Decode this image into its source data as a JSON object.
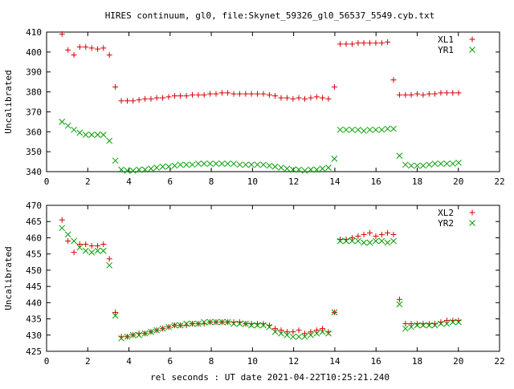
{
  "title": "HIRES continuum, gl0, file:Skynet_59326_gl0_56537_5549.cyb.txt",
  "xlabel": "rel seconds : UT date 2021-04-22T10:25:21.240",
  "chart_data": [
    {
      "type": "scatter",
      "ylabel": "Uncalibrated",
      "xlim": [
        0,
        22
      ],
      "ylim": [
        340,
        410
      ],
      "xticks": [
        0,
        2,
        4,
        6,
        8,
        10,
        12,
        14,
        16,
        18,
        20,
        22
      ],
      "yticks": [
        340,
        350,
        360,
        370,
        380,
        390,
        400,
        410
      ],
      "legend_position": "top-right",
      "series": [
        {
          "name": "XL1",
          "marker": "+",
          "color": "#d40000",
          "x": [
            0.75,
            1.04,
            1.33,
            1.61,
            1.9,
            2.19,
            2.48,
            2.76,
            3.05,
            3.34,
            3.63,
            3.92,
            4.2,
            4.49,
            4.78,
            5.07,
            5.35,
            5.64,
            5.93,
            6.22,
            6.5,
            6.79,
            7.08,
            7.37,
            7.65,
            7.94,
            8.23,
            8.52,
            8.8,
            9.09,
            9.38,
            9.67,
            9.95,
            10.24,
            10.53,
            10.82,
            11.1,
            11.39,
            11.68,
            11.97,
            12.25,
            12.54,
            12.83,
            13.12,
            13.4,
            13.69,
            13.98,
            14.26,
            14.55,
            14.84,
            15.13,
            15.41,
            15.7,
            15.99,
            16.28,
            16.56,
            16.85,
            17.14,
            17.43,
            17.71,
            18.0,
            18.29,
            18.58,
            18.86,
            19.15,
            19.44,
            19.73,
            20.01
          ],
          "y": [
            409,
            401,
            398.5,
            402.5,
            402.5,
            402,
            401.5,
            402,
            398.5,
            382.5,
            375.5,
            375.5,
            375.5,
            376,
            376.5,
            376.5,
            377,
            377,
            377.5,
            378,
            378,
            378,
            378.5,
            378.5,
            378.5,
            379,
            379,
            379.5,
            379.5,
            379,
            379,
            379,
            379,
            379,
            379,
            378.5,
            378,
            377,
            377,
            376.5,
            377,
            376.5,
            377,
            377.5,
            377,
            376.5,
            382.5,
            404,
            404,
            404,
            404.5,
            404.5,
            404.5,
            404.5,
            404.5,
            405,
            386,
            378.5,
            378.5,
            378.5,
            379,
            378.5,
            379,
            379,
            379.5,
            379.5,
            379.5,
            379.5
          ]
        },
        {
          "name": "YR1",
          "marker": "x",
          "color": "#00a000",
          "x": [
            0.75,
            1.04,
            1.33,
            1.61,
            1.9,
            2.19,
            2.48,
            2.76,
            3.05,
            3.34,
            3.63,
            3.92,
            4.2,
            4.49,
            4.78,
            5.07,
            5.35,
            5.64,
            5.93,
            6.22,
            6.5,
            6.79,
            7.08,
            7.37,
            7.65,
            7.94,
            8.23,
            8.52,
            8.8,
            9.09,
            9.38,
            9.67,
            9.95,
            10.24,
            10.53,
            10.82,
            11.1,
            11.39,
            11.68,
            11.97,
            12.25,
            12.54,
            12.83,
            13.12,
            13.4,
            13.69,
            13.98,
            14.26,
            14.55,
            14.84,
            15.13,
            15.41,
            15.7,
            15.99,
            16.28,
            16.56,
            16.85,
            17.14,
            17.43,
            17.71,
            18.0,
            18.29,
            18.58,
            18.86,
            19.15,
            19.44,
            19.73,
            20.01
          ],
          "y": [
            365,
            363,
            361,
            359.5,
            358.5,
            358.5,
            358.5,
            358.5,
            355.5,
            345.5,
            341,
            340.5,
            340.5,
            341,
            341,
            341.5,
            342,
            342.5,
            342.5,
            343,
            343.5,
            343.5,
            343.5,
            344,
            344,
            344,
            344,
            344,
            344,
            344,
            343.5,
            343.5,
            343.5,
            343.5,
            343.5,
            343,
            342.5,
            342,
            341.5,
            341,
            341,
            340.5,
            341,
            341,
            341.5,
            342,
            346.5,
            361,
            361,
            361,
            361,
            360.5,
            361,
            361,
            361,
            361.5,
            361.5,
            348,
            343.5,
            343,
            343,
            343,
            343.5,
            344,
            344,
            344,
            344,
            344.5
          ]
        }
      ]
    },
    {
      "type": "scatter",
      "ylabel": "Uncalibrated",
      "xlim": [
        0,
        22
      ],
      "ylim": [
        425,
        470
      ],
      "xticks": [
        0,
        2,
        4,
        6,
        8,
        10,
        12,
        14,
        16,
        18,
        20,
        22
      ],
      "yticks": [
        425,
        430,
        435,
        440,
        445,
        450,
        455,
        460,
        465,
        470
      ],
      "legend_position": "top-right",
      "series": [
        {
          "name": "XL2",
          "marker": "+",
          "color": "#d40000",
          "x": [
            0.75,
            1.04,
            1.33,
            1.61,
            1.9,
            2.19,
            2.48,
            2.76,
            3.05,
            3.34,
            3.63,
            3.92,
            4.2,
            4.49,
            4.78,
            5.07,
            5.35,
            5.64,
            5.93,
            6.22,
            6.5,
            6.79,
            7.08,
            7.37,
            7.65,
            7.94,
            8.23,
            8.52,
            8.8,
            9.09,
            9.38,
            9.67,
            9.95,
            10.24,
            10.53,
            10.82,
            11.1,
            11.39,
            11.68,
            11.97,
            12.25,
            12.54,
            12.83,
            13.12,
            13.4,
            13.69,
            13.98,
            14.26,
            14.55,
            14.84,
            15.13,
            15.41,
            15.7,
            15.99,
            16.28,
            16.56,
            16.85,
            17.14,
            17.43,
            17.71,
            18.0,
            18.29,
            18.58,
            18.86,
            19.15,
            19.44,
            19.73,
            20.01
          ],
          "y": [
            465.5,
            459,
            455.5,
            458,
            458,
            457.5,
            457.5,
            458,
            453.5,
            437,
            429.5,
            429.5,
            430,
            430.5,
            430.5,
            431,
            431.5,
            432,
            432.5,
            433,
            433,
            433,
            433.5,
            433.5,
            433.5,
            434,
            434,
            434,
            434,
            434,
            434,
            433.5,
            433.5,
            433.5,
            433.5,
            433,
            432,
            431.5,
            431,
            431,
            431.5,
            430.5,
            431,
            431.5,
            432,
            431,
            437,
            459.5,
            459.5,
            460,
            460.5,
            461,
            461.5,
            460.5,
            461,
            461.5,
            461,
            441,
            433.5,
            433.5,
            433.5,
            433.5,
            433.5,
            433.5,
            434,
            434.5,
            434.5,
            434.5
          ]
        },
        {
          "name": "YR2",
          "marker": "x",
          "color": "#00a000",
          "x": [
            0.75,
            1.04,
            1.33,
            1.61,
            1.9,
            2.19,
            2.48,
            2.76,
            3.05,
            3.34,
            3.63,
            3.92,
            4.2,
            4.49,
            4.78,
            5.07,
            5.35,
            5.64,
            5.93,
            6.22,
            6.5,
            6.79,
            7.08,
            7.37,
            7.65,
            7.94,
            8.23,
            8.52,
            8.8,
            9.09,
            9.38,
            9.67,
            9.95,
            10.24,
            10.53,
            10.82,
            11.1,
            11.39,
            11.68,
            11.97,
            12.25,
            12.54,
            12.83,
            13.12,
            13.4,
            13.69,
            13.98,
            14.26,
            14.55,
            14.84,
            15.13,
            15.41,
            15.7,
            15.99,
            16.28,
            16.56,
            16.85,
            17.14,
            17.43,
            17.71,
            18.0,
            18.29,
            18.58,
            18.86,
            19.15,
            19.44,
            19.73,
            20.01
          ],
          "y": [
            463,
            461,
            459,
            457,
            456,
            455.5,
            456,
            456,
            451.5,
            436,
            429,
            429.5,
            430,
            430,
            430.5,
            431,
            431.5,
            432,
            432.5,
            433,
            433,
            433.5,
            433.5,
            433.5,
            434,
            434,
            434,
            434,
            434,
            433.5,
            433.5,
            433.5,
            433,
            433,
            433,
            432.5,
            431,
            430.5,
            430,
            429.5,
            429.5,
            429.5,
            430,
            430.5,
            431,
            430.5,
            437,
            459,
            459,
            459,
            459,
            458.5,
            458.5,
            459,
            459,
            458.5,
            459,
            439.5,
            432,
            432.5,
            433,
            433,
            433,
            433,
            433.5,
            433.5,
            434,
            434
          ]
        }
      ]
    }
  ]
}
